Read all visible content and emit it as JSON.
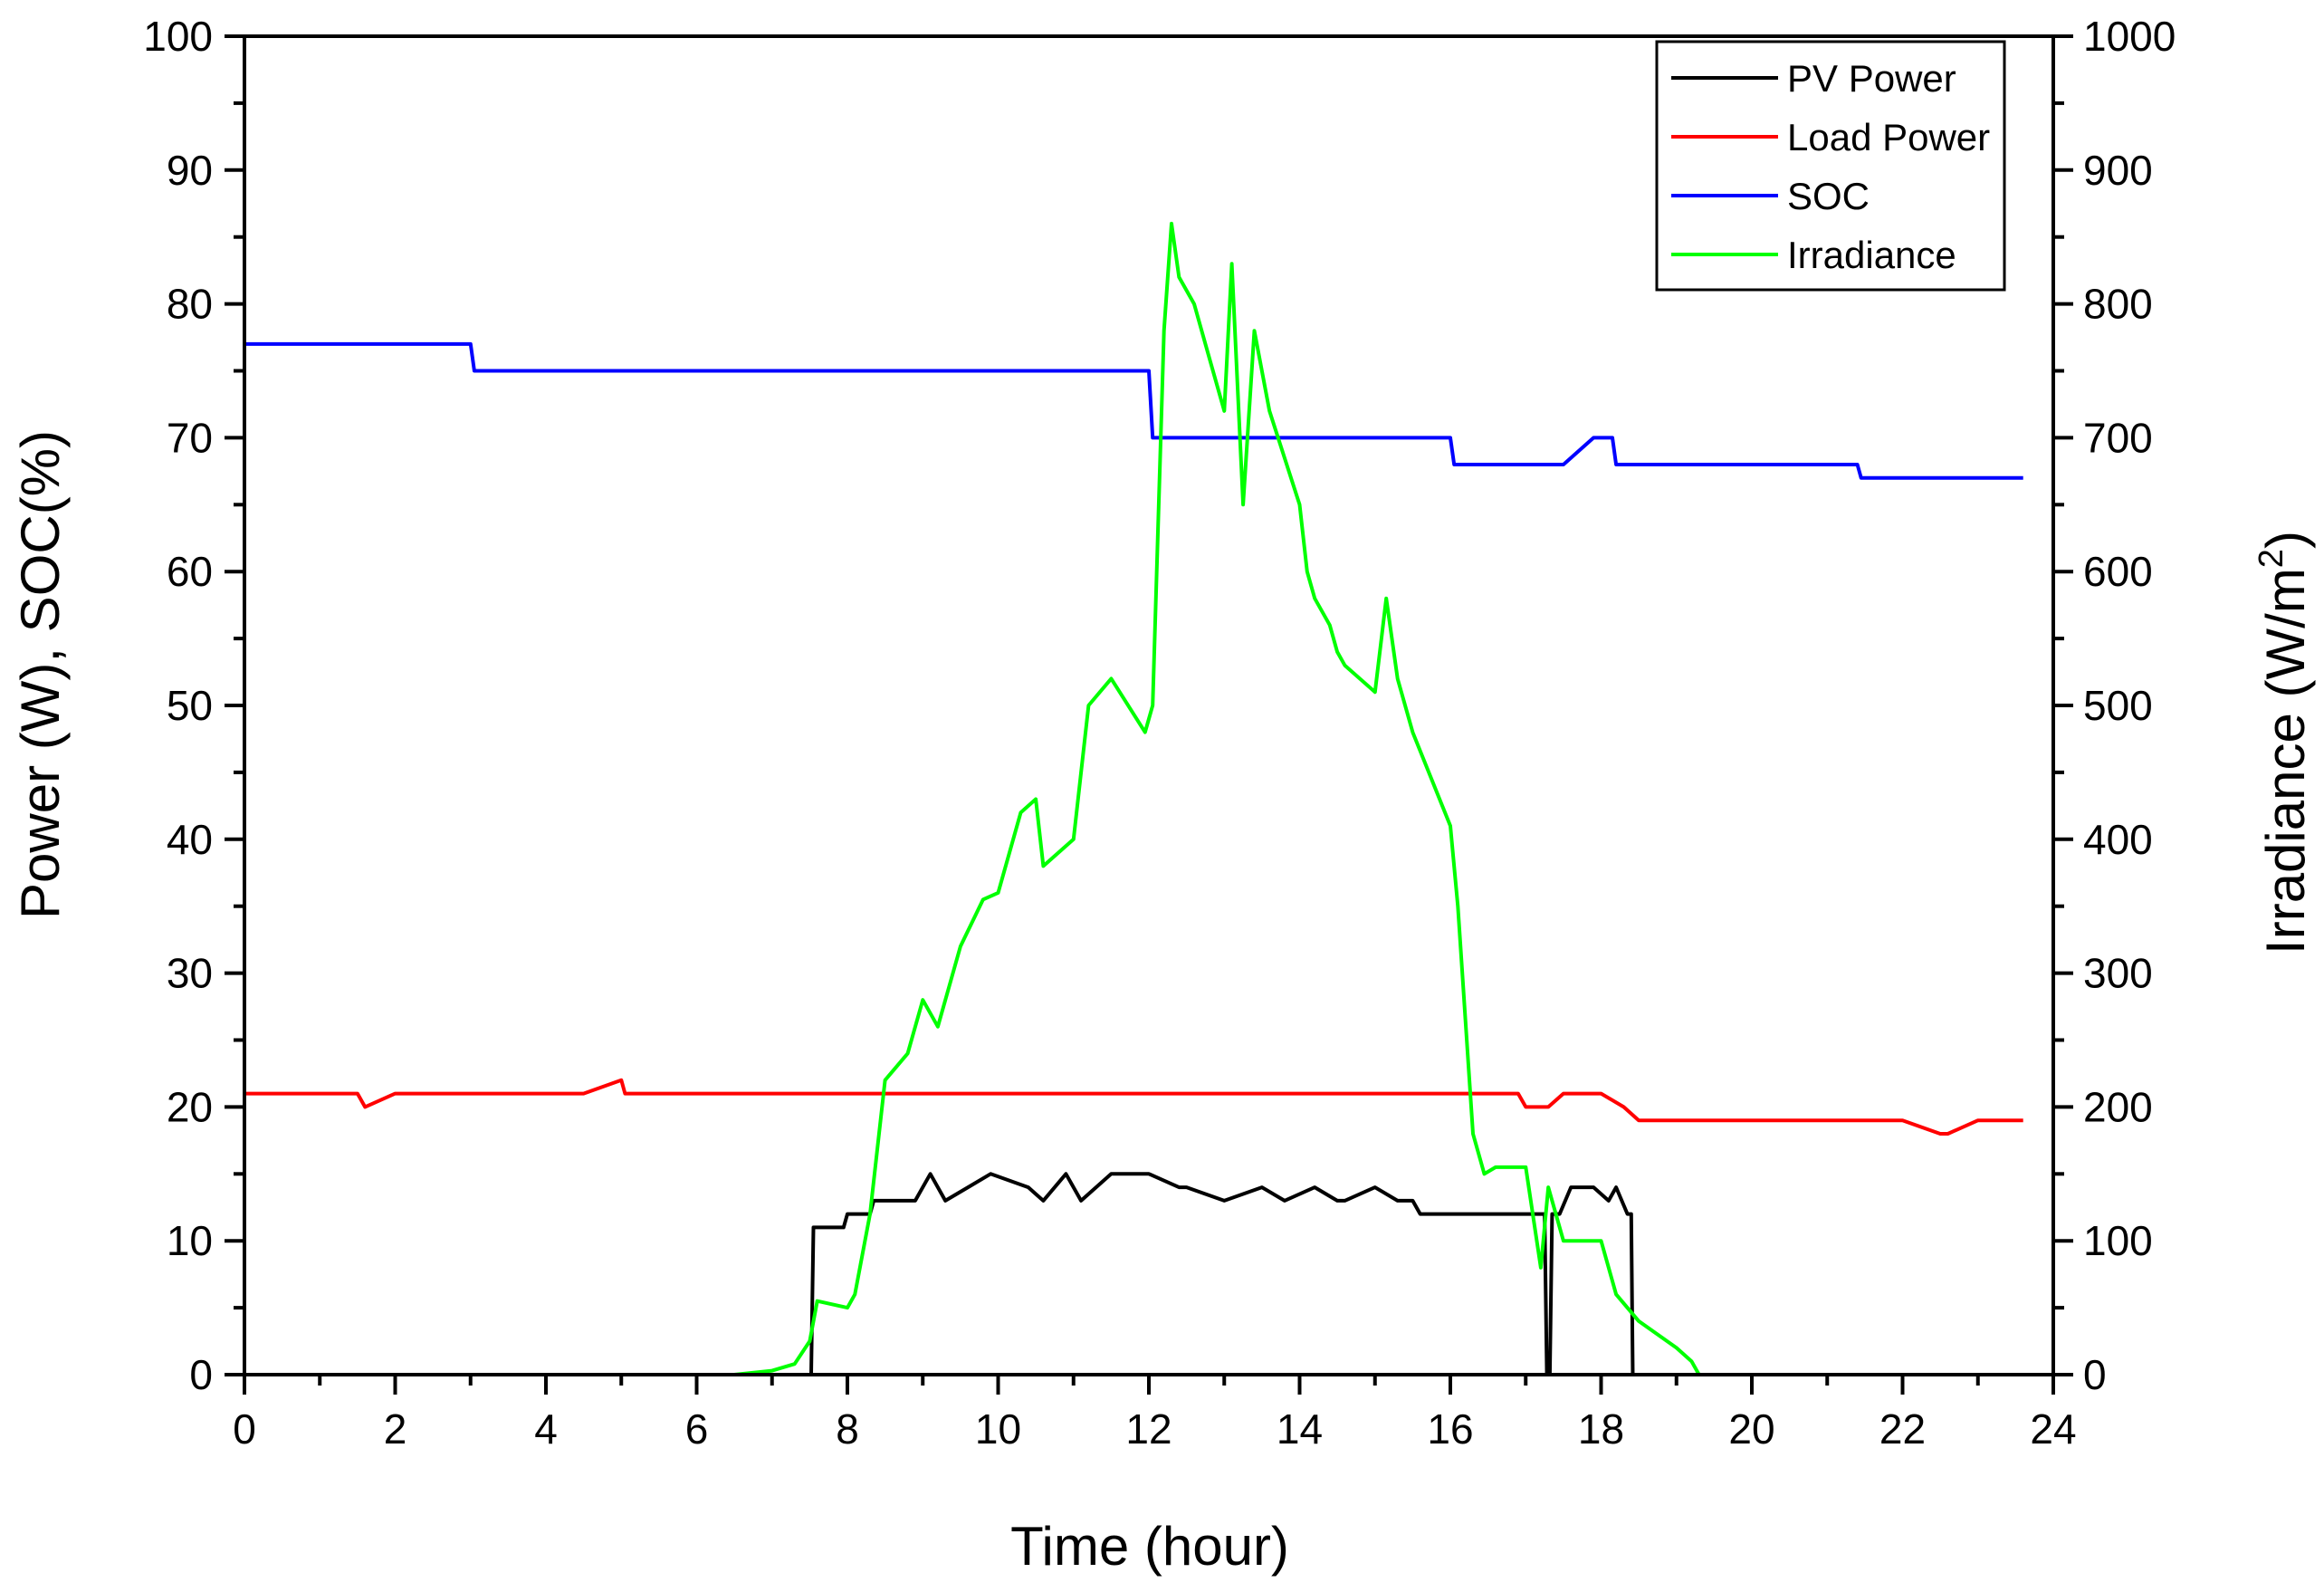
{
  "chart_data": {
    "type": "line",
    "title": "",
    "xlabel": "Time (hour)",
    "ylabel": "Power (W), SOC(%)",
    "y2label": "Irradiance (W/m",
    "y2label_sup": "2",
    "y2label_suffix": ")",
    "xlim": [
      0,
      24
    ],
    "ylim": [
      0,
      100
    ],
    "y2lim": [
      0,
      1000
    ],
    "grid": false,
    "legend": "top-right",
    "x_ticks": [
      0,
      2,
      4,
      6,
      8,
      10,
      12,
      14,
      16,
      18,
      20,
      22,
      24
    ],
    "y_ticks": [
      0,
      10,
      20,
      30,
      40,
      50,
      60,
      70,
      80,
      90,
      100
    ],
    "y2_ticks": [
      0,
      100,
      200,
      300,
      400,
      500,
      600,
      700,
      800,
      900,
      1000
    ],
    "series": [
      {
        "name": "PV Power",
        "color": "#000000",
        "axis": "left",
        "x": [
          0,
          7.52,
          7.55,
          7.58,
          7.6,
          7.95,
          8.0,
          8.3,
          8.35,
          8.5,
          8.55,
          8.9,
          9.1,
          9.3,
          9.6,
          9.9,
          10.4,
          10.6,
          10.9,
          11.1,
          11.5,
          12.0,
          12.4,
          12.5,
          13.0,
          13.5,
          13.8,
          14.2,
          14.5,
          14.6,
          15.0,
          15.3,
          15.5,
          15.6,
          16.0,
          16.5,
          17.0,
          17.2,
          17.25,
          17.28,
          17.32,
          17.35,
          17.45,
          17.6,
          17.9,
          18.1,
          18.2,
          18.35,
          18.4,
          18.42,
          18.45,
          18.5,
          24.0
        ],
        "y": [
          0,
          0,
          11,
          11,
          11,
          11,
          12,
          12,
          13,
          13,
          13,
          13,
          15,
          13,
          14,
          15,
          14,
          13,
          15,
          13,
          15,
          15,
          14,
          14,
          13,
          14,
          13,
          14,
          13,
          13,
          14,
          13,
          13,
          12,
          12,
          12,
          12,
          12,
          12,
          0,
          0,
          12,
          12,
          14,
          14,
          13,
          14,
          12,
          12,
          0,
          0,
          0,
          0
        ]
      },
      {
        "name": "Load Power",
        "color": "#ff0000",
        "axis": "left",
        "x": [
          0,
          0.2,
          0.5,
          1.0,
          1.5,
          1.6,
          2.0,
          2.5,
          3.0,
          3.2,
          3.5,
          4.0,
          4.5,
          5.0,
          5.05,
          5.5,
          6.0,
          7.0,
          8.0,
          9.0,
          10.0,
          11.0,
          12.0,
          13.0,
          14.0,
          15.0,
          16.0,
          16.5,
          16.9,
          17.0,
          17.3,
          17.5,
          18.0,
          18.3,
          18.5,
          19.0,
          19.2,
          20.0,
          21.0,
          22.0,
          22.5,
          22.6,
          23.0,
          23.6
        ],
        "y": [
          21,
          21,
          21,
          21,
          21,
          20,
          21,
          21,
          21,
          21,
          21,
          21,
          21,
          22,
          21,
          21,
          21,
          21,
          21,
          21,
          21,
          21,
          21,
          21,
          21,
          21,
          21,
          21,
          21,
          20,
          20,
          21,
          21,
          20,
          19,
          19,
          19,
          19,
          19,
          19,
          18,
          18,
          19,
          19
        ]
      },
      {
        "name": "SOC",
        "color": "#0000ff",
        "axis": "left",
        "x": [
          0,
          3.0,
          3.05,
          12.0,
          12.05,
          14.5,
          16.0,
          16.05,
          17.5,
          17.9,
          18.15,
          18.2,
          21.4,
          21.45,
          23.6
        ],
        "y": [
          77,
          77,
          75,
          75,
          70,
          70,
          70,
          68,
          68,
          70,
          70,
          68,
          68,
          67,
          67
        ]
      },
      {
        "name": "Irradiance",
        "color": "#00ff00",
        "axis": "right",
        "x": [
          0,
          5.9,
          6.5,
          7.0,
          7.3,
          7.5,
          7.6,
          8.0,
          8.1,
          8.3,
          8.5,
          8.8,
          9.0,
          9.2,
          9.5,
          9.8,
          10.0,
          10.3,
          10.5,
          10.6,
          11.0,
          11.2,
          11.5,
          11.95,
          12.05,
          12.2,
          12.3,
          12.4,
          12.6,
          12.8,
          13.0,
          13.1,
          13.25,
          13.4,
          13.6,
          14.0,
          14.1,
          14.2,
          14.4,
          14.5,
          14.6,
          15.0,
          15.15,
          15.3,
          15.5,
          16.0,
          16.1,
          16.3,
          16.45,
          16.6,
          17.0,
          17.2,
          17.3,
          17.5,
          17.8,
          18.0,
          18.2,
          18.5,
          19.0,
          19.2,
          19.3,
          24.0
        ],
        "y": [
          0,
          0,
          0,
          3,
          8,
          25,
          55,
          50,
          60,
          120,
          220,
          240,
          280,
          260,
          320,
          355,
          360,
          420,
          430,
          380,
          400,
          500,
          520,
          480,
          500,
          780,
          860,
          820,
          800,
          760,
          720,
          830,
          650,
          780,
          720,
          650,
          600,
          580,
          560,
          540,
          530,
          510,
          580,
          520,
          480,
          410,
          350,
          180,
          150,
          155,
          155,
          80,
          140,
          100,
          100,
          100,
          60,
          40,
          20,
          10,
          0,
          0
        ]
      }
    ]
  }
}
